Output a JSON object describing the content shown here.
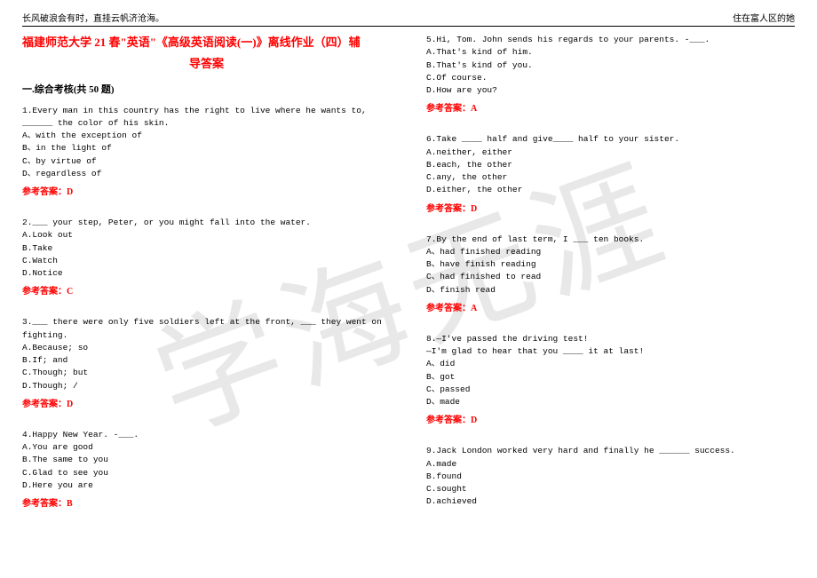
{
  "header": {
    "left": "长风破浪会有时，直挂云帆济沧海。",
    "right": "住在富人区的她"
  },
  "watermark": "学海无涯",
  "title": {
    "line1": "福建师范大学 21 春\"英语\"《高级英语阅读(一)》离线作业（四）辅",
    "line2": "导答案"
  },
  "sectionHeader": "一.综合考核(共 50 题)",
  "colors": {
    "red": "#ff0000",
    "watermark": "#e8e8e8",
    "text": "#000000"
  },
  "questions": [
    {
      "num": "1",
      "text": "Every man in this country has the right to live where he wants to, ______ the color of his skin.",
      "options": [
        "A、with the exception of",
        "B、in the light of",
        "C、by virtue of",
        "D、regardless of"
      ],
      "answer": "参考答案：D"
    },
    {
      "num": "2",
      "text": "___ your step, Peter, or you might fall into the water.",
      "options": [
        "A.Look out",
        "B.Take",
        "C.Watch",
        "D.Notice"
      ],
      "answer": "参考答案：C"
    },
    {
      "num": "3",
      "text": "___ there were only five soldiers left at the front, ___ they went on fighting.",
      "options": [
        "A.Because; so",
        "B.If; and",
        "C.Though; but",
        "D.Though; /"
      ],
      "answer": "参考答案：D"
    },
    {
      "num": "4",
      "text": "Happy New Year. -___.",
      "options": [
        "A.You are good",
        "B.The same to you",
        "C.Glad to see you",
        "D.Here you are"
      ],
      "answer": "参考答案：B"
    },
    {
      "num": "5",
      "text": "Hi, Tom. John sends his regards to your parents. -___.",
      "options": [
        "A.That's kind of him.",
        "B.That's kind of you.",
        "C.Of course.",
        "D.How are you?"
      ],
      "answer": "参考答案：A"
    },
    {
      "num": "6",
      "text": "Take ____ half and give____ half to your sister.",
      "options": [
        "A.neither, either",
        "B.each, the other",
        "C.any, the other",
        "D.either, the other"
      ],
      "answer": "参考答案：D"
    },
    {
      "num": "7",
      "text": "By the end of last term, I ___ ten books.",
      "options": [
        "A、had finished reading",
        "B、have finish reading",
        "C、had finished to read",
        "D、finish read"
      ],
      "answer": "参考答案：A"
    },
    {
      "num": "8",
      "text": "—I've passed the driving test!",
      "text2": "—I'm glad to hear that you ____ it at last!",
      "options": [
        "A、did",
        "B、got",
        "C、passed",
        "D、made"
      ],
      "answer": "参考答案：D"
    },
    {
      "num": "9",
      "text": "Jack London worked very hard and finally he ______ success.",
      "options": [
        "A.made",
        "B.found",
        "C.sought",
        "D.achieved"
      ],
      "answer": ""
    }
  ]
}
